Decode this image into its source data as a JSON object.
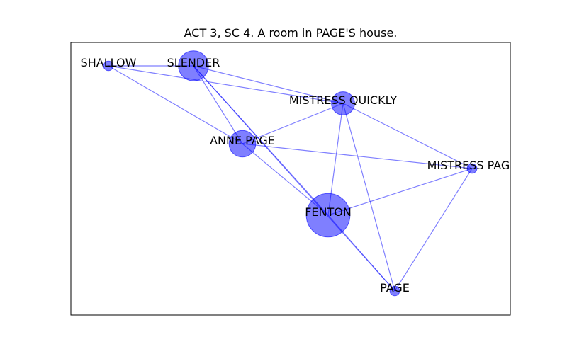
{
  "title": "ACT 3, SC 4. A room in PAGE'S house.",
  "colors": {
    "node_fill": "#0000ff",
    "edge_stroke": "#0000ff",
    "frame": "#000000",
    "background": "#ffffff"
  },
  "nodes": [
    {
      "id": "shallow",
      "label": "SHALLOW",
      "weight": 1
    },
    {
      "id": "slender",
      "label": "SLENDER",
      "weight": 4
    },
    {
      "id": "mistress_quickly",
      "label": "MISTRESS QUICKLY",
      "weight": 3
    },
    {
      "id": "anne_page",
      "label": "ANNE PAGE",
      "weight": 3.5
    },
    {
      "id": "mistress_page",
      "label": "MISTRESS PAGE",
      "weight": 1
    },
    {
      "id": "fenton",
      "label": "FENTON",
      "weight": 6
    },
    {
      "id": "page",
      "label": "PAGE",
      "weight": 1
    }
  ],
  "edges": [
    [
      "shallow",
      "slender"
    ],
    [
      "shallow",
      "mistress_quickly"
    ],
    [
      "shallow",
      "anne_page"
    ],
    [
      "slender",
      "mistress_quickly"
    ],
    [
      "slender",
      "anne_page"
    ],
    [
      "slender",
      "fenton"
    ],
    [
      "slender",
      "page"
    ],
    [
      "mistress_quickly",
      "anne_page"
    ],
    [
      "mistress_quickly",
      "mistress_page"
    ],
    [
      "mistress_quickly",
      "fenton"
    ],
    [
      "mistress_quickly",
      "page"
    ],
    [
      "anne_page",
      "mistress_page"
    ],
    [
      "anne_page",
      "fenton"
    ],
    [
      "mistress_page",
      "fenton"
    ],
    [
      "mistress_page",
      "page"
    ],
    [
      "fenton",
      "page"
    ]
  ]
}
